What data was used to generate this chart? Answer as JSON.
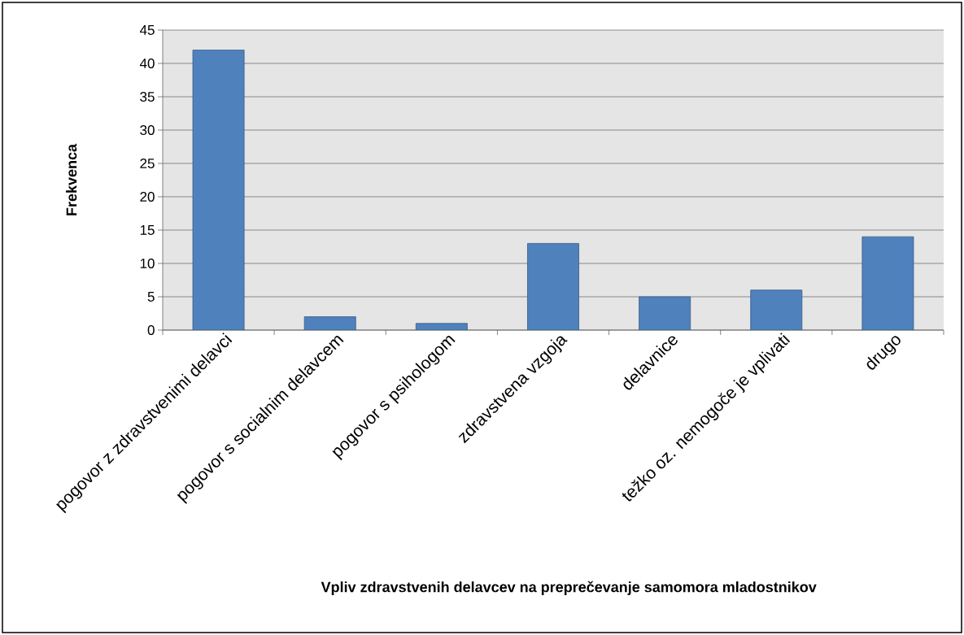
{
  "chart_data": {
    "type": "bar",
    "xlabel": "Vpliv zdravstvenih delavcev na preprečevanje samomora mladostnikov",
    "ylabel": "Frekvenca",
    "categories": [
      "pogovor z zdravstvenimi delavci",
      "pogovor s socialnim delavcem",
      "pogovor s psihologom",
      "zdravstvena vzgoja",
      "delavnice",
      "težko oz. nemogoče je vplivati",
      "drugo"
    ],
    "values": [
      42,
      2,
      1,
      13,
      5,
      6,
      14
    ],
    "color": "#4f81bd",
    "ylim": [
      0,
      45
    ],
    "yticks": [
      0,
      5,
      10,
      15,
      20,
      25,
      30,
      35,
      40,
      45
    ],
    "grid": "y"
  }
}
